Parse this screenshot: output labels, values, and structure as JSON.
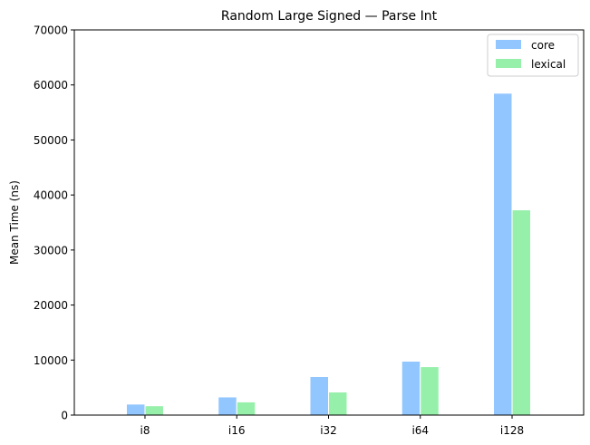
{
  "chart_data": {
    "type": "bar",
    "title": "Random Large Signed — Parse Int",
    "xlabel": "",
    "ylabel": "Mean Time (ns)",
    "categories": [
      "i8",
      "i16",
      "i32",
      "i64",
      "i128"
    ],
    "series": [
      {
        "name": "core",
        "color": "#92c6ff",
        "values": [
          2000,
          3300,
          7000,
          9800,
          58500
        ]
      },
      {
        "name": "lexical",
        "color": "#97f0aa",
        "values": [
          1700,
          2400,
          4200,
          8800,
          37300
        ]
      }
    ],
    "ylim": [
      0,
      70000
    ],
    "yticks": [
      "0",
      "10000",
      "20000",
      "30000",
      "40000",
      "50000",
      "60000",
      "70000"
    ],
    "grid": false,
    "legend_position": "top-right"
  }
}
